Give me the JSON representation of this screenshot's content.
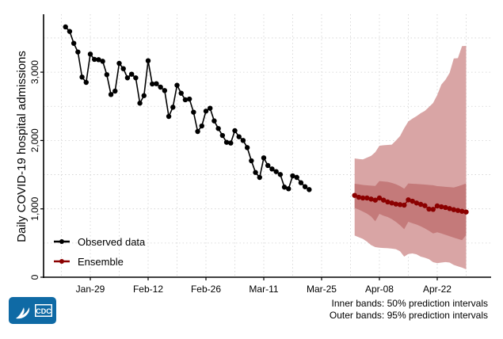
{
  "chart_data": {
    "type": "line",
    "title": "",
    "ylabel": "Daily COVID-19 hospital admissions",
    "xlabel": "",
    "ylim": [
      0,
      3800
    ],
    "x_ticks": [
      {
        "label": "Jan-29",
        "day": 0
      },
      {
        "label": "Feb-12",
        "day": 14
      },
      {
        "label": "Feb-26",
        "day": 28
      },
      {
        "label": "Mar-11",
        "day": 42
      },
      {
        "label": "Mar-25",
        "day": 56
      },
      {
        "label": "Apr-08",
        "day": 70
      },
      {
        "label": "Apr-22",
        "day": 84
      }
    ],
    "y_ticks": [
      {
        "label": "0",
        "value": 0
      },
      {
        "label": "1,000",
        "value": 1000
      },
      {
        "label": "2,000",
        "value": 2000
      },
      {
        "label": "3,000",
        "value": 3000
      }
    ],
    "grid": true,
    "legend_position": "bottom-left",
    "series": [
      {
        "name": "Observed data",
        "color": "#000000",
        "start_date": "2024-01-23",
        "start_day": -6,
        "values": [
          3662,
          3596,
          3422,
          3295,
          2928,
          2850,
          3264,
          3187,
          3183,
          3159,
          2963,
          2673,
          2723,
          3129,
          3051,
          2917,
          2970,
          2917,
          2546,
          2657,
          3167,
          2827,
          2831,
          2781,
          2731,
          2352,
          2487,
          2808,
          2692,
          2596,
          2607,
          2414,
          2132,
          2213,
          2430,
          2472,
          2287,
          2175,
          2074,
          1974,
          1963,
          2144,
          2055,
          2001,
          1896,
          1703,
          1533,
          1460,
          1746,
          1634,
          1584,
          1545,
          1503,
          1318,
          1294,
          1483,
          1460,
          1382,
          1324,
          1282
        ]
      },
      {
        "name": "Ensemble",
        "color": "#8b0000",
        "start_date": "2024-04-02",
        "start_day": 64,
        "values": [
          1197,
          1170,
          1159,
          1159,
          1143,
          1128,
          1159,
          1128,
          1101,
          1086,
          1070,
          1062,
          1055,
          1132,
          1112,
          1086,
          1066,
          1047,
          997,
          993,
          1043,
          1031,
          1020,
          1004,
          988,
          977,
          965,
          954
        ],
        "pi50_lower": [
          1012,
          990,
          960,
          930,
          888,
          819,
          927,
          900,
          880,
          850,
          810,
          760,
          703,
          811,
          790,
          770,
          745,
          714,
          680,
          640,
          657,
          640,
          620,
          600,
          580,
          560,
          541,
          618
        ],
        "pi50_upper": [
          1367,
          1360,
          1350,
          1344,
          1340,
          1336,
          1406,
          1400,
          1395,
          1380,
          1360,
          1333,
          1295,
          1371,
          1368,
          1364,
          1360,
          1356,
          1350,
          1345,
          1333,
          1328,
          1323,
          1318,
          1313,
          1330,
          1350,
          1371
        ],
        "pi95_lower": [
          610,
          585,
          560,
          520,
          470,
          440,
          432,
          428,
          425,
          418,
          410,
          380,
          301,
          340,
          348,
          335,
          301,
          285,
          263,
          220,
          205,
          215,
          222,
          215,
          180,
          160,
          140,
          116
        ],
        "pi95_upper": [
          1738,
          1730,
          1723,
          1750,
          1776,
          1830,
          1923,
          1931,
          1935,
          1939,
          2000,
          2066,
          2180,
          2279,
          2320,
          2356,
          2400,
          2433,
          2490,
          2549,
          2665,
          2819,
          2890,
          2990,
          3200,
          3206,
          3380,
          3385
        ],
        "band50_color": "#c47a7a",
        "band95_color": "#d9a5a5"
      }
    ],
    "legend": [
      {
        "label": "Observed data",
        "color": "#000000"
      },
      {
        "label": "Ensemble",
        "color": "#8b0000"
      }
    ],
    "notes": [
      "Inner bands: 50% prediction intervals",
      "Outer bands: 95% prediction intervals"
    ]
  },
  "logo": {
    "text": "CDC",
    "color": "#0f6aa5"
  }
}
